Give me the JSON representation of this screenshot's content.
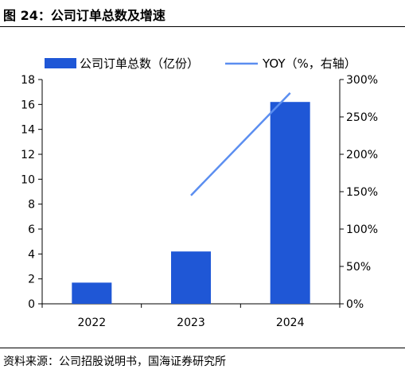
{
  "figure": {
    "title": "图 24：公司订单总数及增速",
    "source": "资料来源：公司招股说明书，国海证券研究所"
  },
  "chart_data": {
    "type": "bar",
    "categories": [
      "2022",
      "2023",
      "2024"
    ],
    "series": [
      {
        "name": "公司订单总数（亿份）",
        "type": "bar",
        "axis": "left",
        "color": "#1f57d6",
        "values": [
          1.7,
          4.2,
          16.2
        ]
      },
      {
        "name": "YOY（%，右轴）",
        "type": "line",
        "axis": "right",
        "color": "#5b8ef0",
        "values": [
          null,
          145,
          282
        ]
      }
    ],
    "ylim": [
      0,
      18
    ],
    "yticks": [
      "0",
      "2",
      "4",
      "6",
      "8",
      "10",
      "12",
      "14",
      "16",
      "18"
    ],
    "y2lim": [
      0,
      300
    ],
    "y2ticks": [
      "0%",
      "50%",
      "100%",
      "150%",
      "200%",
      "250%",
      "300%"
    ],
    "grid": false,
    "legend_position": "top"
  }
}
